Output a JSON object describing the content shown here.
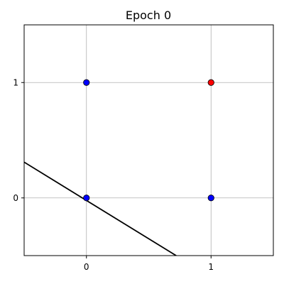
{
  "chart_data": {
    "type": "scatter",
    "title": "Epoch 0",
    "xlabel": "",
    "ylabel": "",
    "xlim": [
      -0.5,
      1.5
    ],
    "ylim": [
      -0.5,
      1.5
    ],
    "xticks": [
      0,
      1
    ],
    "yticks": [
      0,
      1
    ],
    "xtick_labels": [
      "0",
      "1"
    ],
    "ytick_labels": [
      "0",
      "1"
    ],
    "grid": true,
    "points": [
      {
        "x": 0,
        "y": 0,
        "class": "blue"
      },
      {
        "x": 0,
        "y": 1,
        "class": "blue"
      },
      {
        "x": 1,
        "y": 0,
        "class": "blue"
      },
      {
        "x": 1,
        "y": 1,
        "class": "red"
      }
    ],
    "decision_boundary": {
      "points": [
        [
          -0.5,
          0.31
        ],
        [
          0.72,
          -0.5
        ]
      ],
      "color": "#000000"
    },
    "colors": {
      "blue": "#0000ff",
      "red": "#ff0000",
      "grid": "#b0b0b0",
      "axes": "#000000"
    }
  }
}
